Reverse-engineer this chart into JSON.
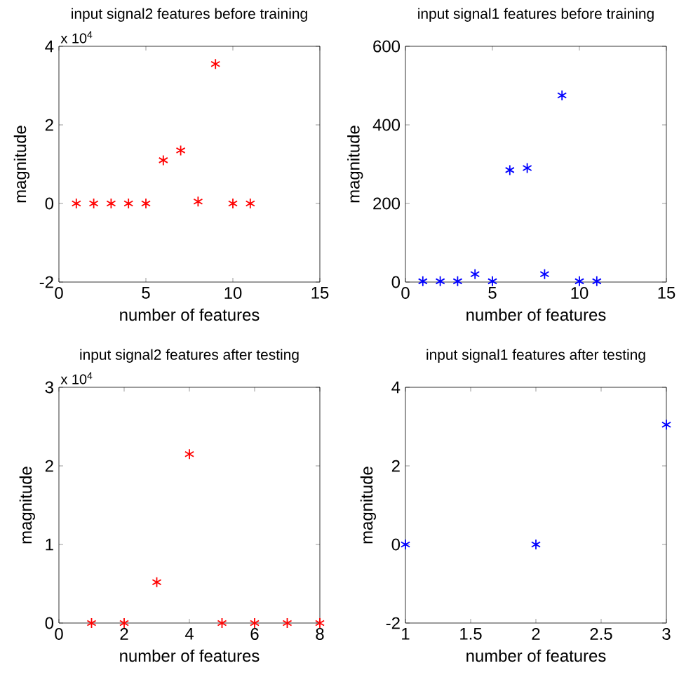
{
  "chart_data": [
    {
      "type": "scatter",
      "title": "input signal2 features before training",
      "xlabel": "number of features",
      "ylabel": "magnitude",
      "annotations": [
        "x 10$^{4}$"
      ],
      "x": [
        1,
        2,
        3,
        4,
        5,
        6,
        7,
        8,
        9,
        10,
        11
      ],
      "values": [
        0,
        0,
        0,
        0,
        0,
        1.1,
        1.35,
        0.05,
        3.55,
        0,
        0
      ],
      "color": "#ff0000",
      "marker": "cross",
      "xlim": [
        0,
        15
      ],
      "xticks": [
        0,
        5,
        10,
        15
      ],
      "ylim": [
        -2,
        4
      ],
      "yticks": [
        -2,
        0,
        2,
        4
      ]
    },
    {
      "type": "scatter",
      "title": "input signal1 features before training",
      "xlabel": "number of features",
      "ylabel": "magnitude",
      "x": [
        1,
        2,
        3,
        4,
        5,
        6,
        7,
        8,
        9,
        10,
        11
      ],
      "values": [
        2,
        2,
        2,
        20,
        2,
        285,
        290,
        20,
        475,
        2,
        2
      ],
      "color": "#0000ff",
      "marker": "cross",
      "xlim": [
        0,
        15
      ],
      "xticks": [
        0,
        5,
        10,
        15
      ],
      "ylim": [
        0,
        600
      ],
      "yticks": [
        0,
        200,
        400,
        600
      ]
    },
    {
      "type": "scatter",
      "title": "input signal2 features after testing",
      "xlabel": "number of features",
      "ylabel": "magnitude",
      "annotations": [
        "x 10$^{4}$"
      ],
      "x": [
        1,
        2,
        3,
        4,
        5,
        6,
        7,
        8
      ],
      "values": [
        0,
        0,
        0.52,
        2.15,
        0,
        0,
        0,
        0
      ],
      "color": "#ff0000",
      "marker": "cross",
      "xlim": [
        0,
        8
      ],
      "xticks": [
        0,
        2,
        4,
        6,
        8
      ],
      "ylim": [
        0,
        3
      ],
      "yticks": [
        0,
        1,
        2,
        3
      ]
    },
    {
      "type": "scatter",
      "title": "input signal1 features after testing",
      "xlabel": "number of features",
      "ylabel": "magnitude",
      "x": [
        1,
        2,
        3
      ],
      "values": [
        0,
        0,
        3.05
      ],
      "color": "#0000ff",
      "marker": "cross",
      "xlim": [
        1,
        3
      ],
      "xticks": [
        1,
        1.5,
        2,
        2.5,
        3
      ],
      "ylim": [
        -2,
        4
      ],
      "yticks": [
        -2,
        0,
        2,
        4
      ]
    }
  ]
}
